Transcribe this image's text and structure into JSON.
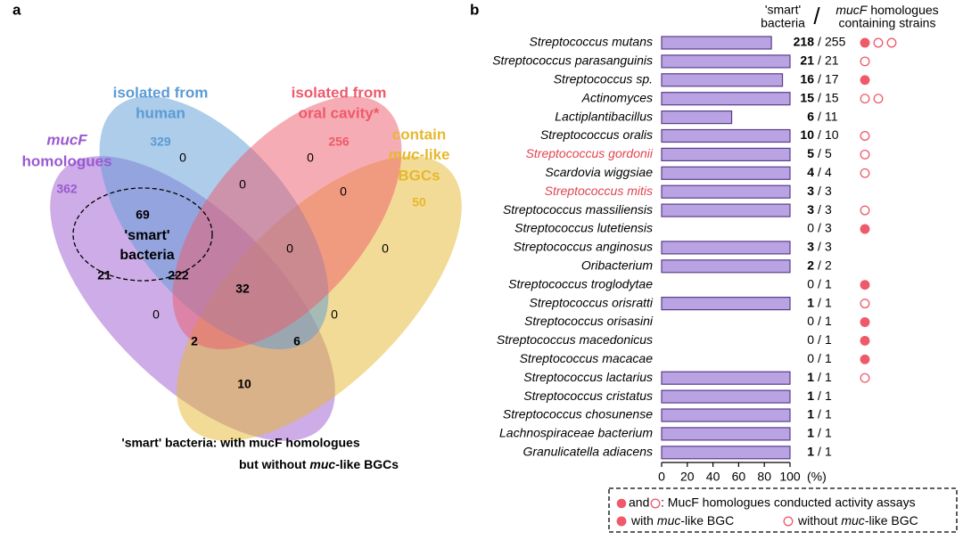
{
  "panel_labels": [
    "a",
    "b"
  ],
  "venn": {
    "sets": [
      {
        "label": [
          "isolated from",
          "human"
        ],
        "count": 329,
        "color": "#5b9bd5"
      },
      {
        "label": [
          "isolated from",
          "oral cavity*"
        ],
        "count": 256,
        "color": "#ee5a6a"
      },
      {
        "label": [
          "contain",
          "muc",
          "-like",
          "BGCs"
        ],
        "count": 50,
        "color": "#e6b82e"
      },
      {
        "label": [
          "mucF",
          "homologues"
        ],
        "count": 362,
        "color": "#9b59d0"
      }
    ],
    "region_counts": [
      0,
      0,
      0,
      0,
      69,
      21,
      222,
      0,
      0,
      32,
      0,
      0,
      2,
      6,
      10
    ],
    "smart_label": [
      "'smart'",
      "bacteria"
    ],
    "footnote": {
      "line1": "'smart' bacteria: with mucF homologues",
      "line2": [
        "but without",
        "muc",
        "-like BGCs"
      ]
    }
  },
  "chart_data": {
    "type": "bar",
    "orientation": "horizontal",
    "header": {
      "left": [
        "'smart'",
        "bacteria"
      ],
      "separator": "/",
      "right": [
        "mucF",
        "homologues",
        "containing strains"
      ]
    },
    "categories": [
      "Streptococcus mutans",
      "Streptococcus parasanguinis",
      "Streptococcus sp.",
      "Actinomyces",
      "Lactiplantibacillus",
      "Streptococcus oralis",
      "Streptococcus gordonii",
      "Scardovia wiggsiae",
      "Streptococcus mitis",
      "Streptococcus massiliensis",
      "Streptococcus lutetiensis",
      "Streptococcus anginosus",
      "Oribacterium",
      "Streptococcus troglodytae",
      "Streptococcus orisratti",
      "Streptococcus orisasini",
      "Streptococcus macedonicus",
      "Streptococcus macacae",
      "Streptococcus lactarius",
      "Streptococcus cristatus",
      "Streptococcus chosunense",
      "Lachnospiraceae bacterium",
      "Granulicatella adiacens"
    ],
    "category_colors": [
      "#000000",
      "#000000",
      "#000000",
      "#000000",
      "#000000",
      "#000000",
      "#e0454f",
      "#000000",
      "#e0454f",
      "#000000",
      "#000000",
      "#000000",
      "#000000",
      "#000000",
      "#000000",
      "#000000",
      "#000000",
      "#000000",
      "#000000",
      "#000000",
      "#000000",
      "#000000",
      "#000000"
    ],
    "values": [
      85.49,
      100,
      94.12,
      100,
      54.55,
      100,
      100,
      100,
      100,
      100,
      0,
      100,
      100,
      0,
      100,
      0,
      0,
      0,
      100,
      100,
      100,
      100,
      100
    ],
    "smart_counts": [
      218,
      21,
      16,
      15,
      6,
      10,
      5,
      4,
      3,
      3,
      0,
      3,
      2,
      0,
      1,
      0,
      0,
      0,
      1,
      1,
      1,
      1,
      1
    ],
    "totals": [
      255,
      21,
      17,
      15,
      11,
      10,
      5,
      4,
      3,
      3,
      3,
      3,
      2,
      1,
      1,
      1,
      1,
      1,
      1,
      1,
      1,
      1,
      1
    ],
    "count_separator": "/",
    "assay_markers": [
      [
        "filled",
        "open",
        "open"
      ],
      [
        "open"
      ],
      [
        "filled"
      ],
      [
        "open",
        "open"
      ],
      [],
      [
        "open"
      ],
      [
        "open"
      ],
      [
        "open"
      ],
      [],
      [
        "open"
      ],
      [
        "filled"
      ],
      [],
      [],
      [
        "filled"
      ],
      [
        "open"
      ],
      [
        "filled"
      ],
      [
        "filled"
      ],
      [
        "filled"
      ],
      [
        "open"
      ],
      [],
      [],
      [],
      []
    ],
    "color": "#b9a3e3",
    "edge_color": "#5a3d8a",
    "marker_color": "#ee5a6a",
    "xlim": [
      0,
      100
    ],
    "xticks": [
      0,
      20,
      40,
      60,
      80,
      100
    ],
    "x_unit": "(%)",
    "legend": {
      "mid": "and",
      "text": ": MucF homologues conducted activity assays",
      "filled": [
        "with",
        "muc",
        "-like BGC"
      ],
      "open": [
        "without",
        "muc",
        "-like BGC"
      ]
    }
  }
}
